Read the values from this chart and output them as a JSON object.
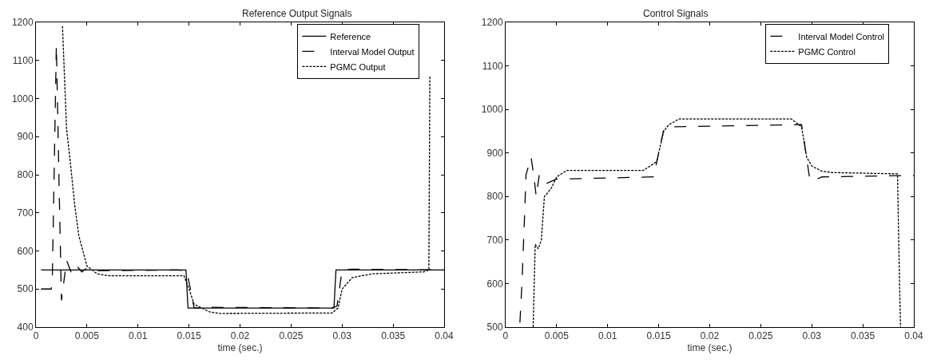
{
  "chart_data": [
    {
      "type": "line",
      "title": "Reference Output Signals",
      "xlabel": "time (sec.)",
      "xlim": [
        0,
        0.04
      ],
      "ylim": [
        400,
        1200
      ],
      "xticks": [
        0,
        0.005,
        0.01,
        0.015,
        0.02,
        0.025,
        0.03,
        0.035,
        0.04
      ],
      "yticks": [
        400,
        500,
        600,
        700,
        800,
        900,
        1000,
        1100,
        1200
      ],
      "legend": "top right",
      "series": [
        {
          "name": "Reference",
          "color": "#000000",
          "line_style": "solid",
          "x": [
            0.0005,
            0.0147,
            0.0149,
            0.0292,
            0.0294,
            0.04
          ],
          "values": [
            550,
            550,
            450,
            450,
            550,
            550
          ]
        },
        {
          "name": "Interval Model Output",
          "color": "#000000",
          "line_style": "dashed",
          "x": [
            0.0005,
            0.0015,
            0.0016,
            0.002,
            0.0023,
            0.0025,
            0.003,
            0.0035,
            0.004,
            0.0045,
            0.005,
            0.006,
            0.014,
            0.0148,
            0.0155,
            0.017,
            0.029,
            0.0295,
            0.03,
            0.031,
            0.04
          ],
          "values": [
            500,
            500,
            520,
            1140,
            730,
            470,
            575,
            540,
            560,
            545,
            555,
            548,
            550,
            545,
            450,
            452,
            450,
            455,
            550,
            552,
            550
          ]
        },
        {
          "name": "PGMC Output",
          "color": "#000000",
          "line_style": "dotted",
          "x": [
            0.0026,
            0.003,
            0.0033,
            0.0038,
            0.0042,
            0.005,
            0.006,
            0.007,
            0.0145,
            0.015,
            0.0155,
            0.017,
            0.018,
            0.029,
            0.0296,
            0.03,
            0.031,
            0.033,
            0.038,
            0.0385,
            0.0386
          ],
          "values": [
            1190,
            920,
            850,
            720,
            640,
            560,
            540,
            535,
            535,
            500,
            460,
            440,
            436,
            437,
            450,
            500,
            530,
            540,
            545,
            550,
            1060
          ]
        }
      ]
    },
    {
      "type": "line",
      "title": "Control Signals",
      "xlabel": "time (sec.)",
      "xlim": [
        0,
        0.04
      ],
      "ylim": [
        500,
        1200
      ],
      "xticks": [
        0,
        0.005,
        0.01,
        0.015,
        0.02,
        0.025,
        0.03,
        0.035,
        0.04
      ],
      "yticks": [
        500,
        600,
        700,
        800,
        900,
        1000,
        1100,
        1200
      ],
      "legend": "top right",
      "series": [
        {
          "name": "Interval Model Control",
          "color": "#000000",
          "line_style": "dashed",
          "x": [
            0.0014,
            0.0016,
            0.0018,
            0.002,
            0.0025,
            0.0028,
            0.003,
            0.0033,
            0.0037,
            0.004,
            0.0045,
            0.005,
            0.009,
            0.0145,
            0.015,
            0.0155,
            0.016,
            0.029,
            0.0293,
            0.0298,
            0.03,
            0.031,
            0.0385,
            0.04
          ],
          "values": [
            510,
            600,
            720,
            850,
            890,
            840,
            800,
            850,
            840,
            830,
            835,
            840,
            842,
            845,
            900,
            955,
            960,
            965,
            920,
            840,
            835,
            845,
            848,
            848
          ]
        },
        {
          "name": "PGMC Control",
          "color": "#000000",
          "line_style": "dotted",
          "x": [
            0.0027,
            0.0029,
            0.0032,
            0.0035,
            0.0038,
            0.004,
            0.0045,
            0.005,
            0.006,
            0.0135,
            0.0148,
            0.0155,
            0.016,
            0.017,
            0.028,
            0.029,
            0.0295,
            0.03,
            0.031,
            0.032,
            0.0384,
            0.0386,
            0.0387
          ],
          "values": [
            500,
            690,
            680,
            700,
            800,
            805,
            820,
            845,
            860,
            860,
            880,
            950,
            965,
            978,
            978,
            960,
            890,
            870,
            858,
            855,
            852,
            600,
            500
          ]
        }
      ]
    }
  ]
}
